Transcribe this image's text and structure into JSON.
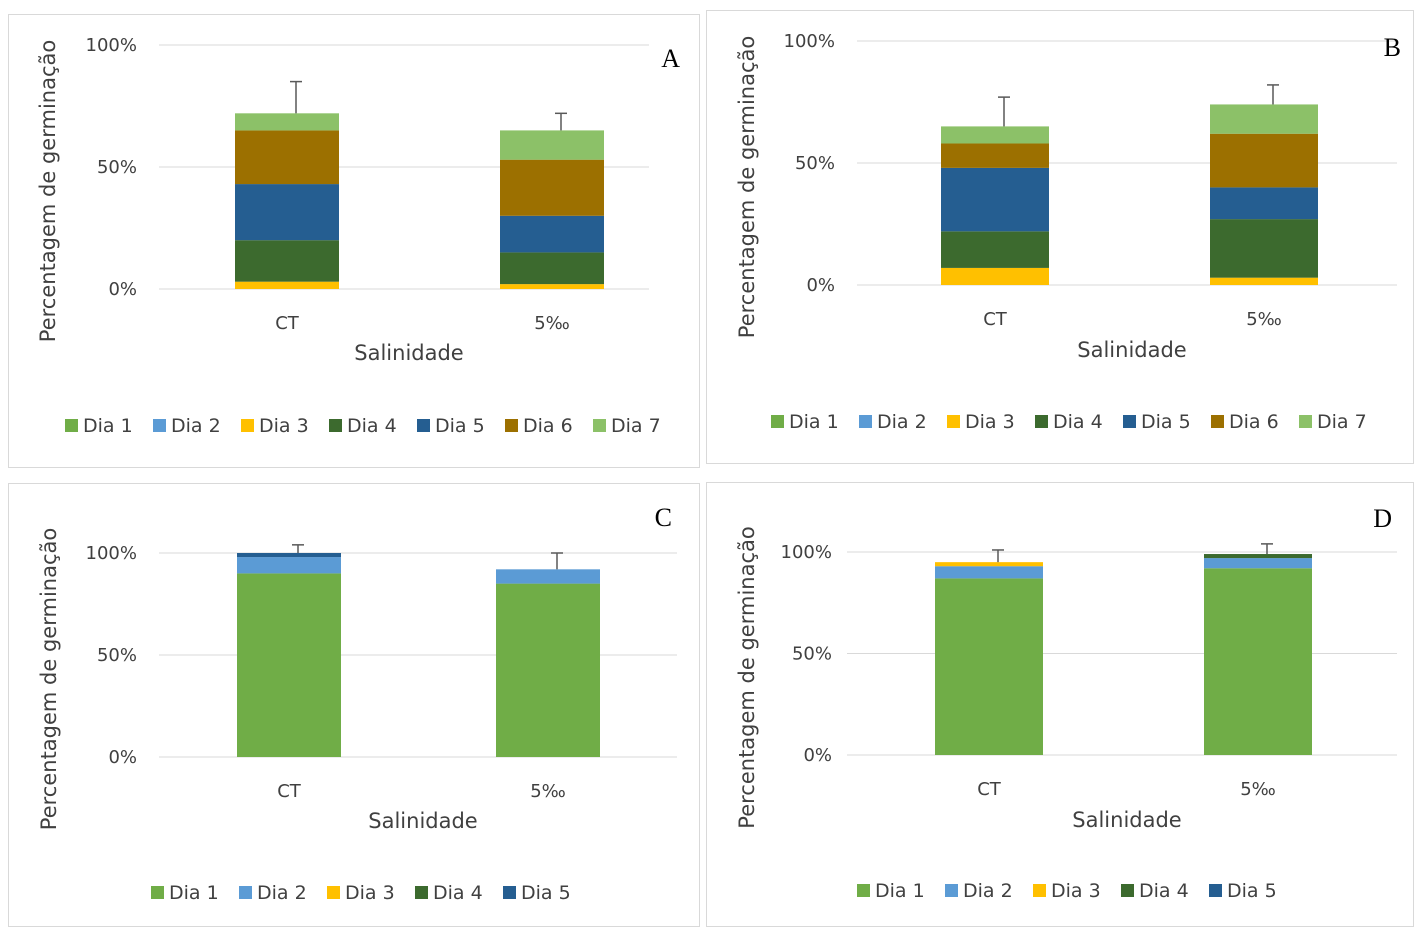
{
  "colors": {
    "Dia 1": "#70ad47",
    "Dia 2": "#5b9bd5",
    "Dia 3": "#ffc000",
    "Dia 4": "#3c6a2e",
    "Dia 5": "#255e91",
    "Dia 6": "#9c7000",
    "Dia 7": "#8cc168"
  },
  "chart_data": [
    {
      "panel_label": "A",
      "type": "bar",
      "stacked": true,
      "categories": [
        "CT",
        "5‰"
      ],
      "xlabel": "Salinidade",
      "ylabel": "Percentagem de germinação",
      "yticks": [
        "0%",
        "50%",
        "100%"
      ],
      "ylim": [
        0,
        100
      ],
      "grid": true,
      "legend_position": "bottom",
      "series": [
        {
          "name": "Dia 1",
          "values": [
            0,
            0
          ]
        },
        {
          "name": "Dia 2",
          "values": [
            0,
            0
          ]
        },
        {
          "name": "Dia 3",
          "values": [
            3,
            2
          ]
        },
        {
          "name": "Dia 4",
          "values": [
            17,
            13
          ]
        },
        {
          "name": "Dia 5",
          "values": [
            23,
            15
          ]
        },
        {
          "name": "Dia 6",
          "values": [
            22,
            23
          ]
        },
        {
          "name": "Dia 7",
          "values": [
            7,
            12
          ]
        }
      ],
      "error_top": [
        85,
        72
      ]
    },
    {
      "panel_label": "B",
      "type": "bar",
      "stacked": true,
      "categories": [
        "CT",
        "5‰"
      ],
      "xlabel": "Salinidade",
      "ylabel": "Percentagem de germinação",
      "yticks": [
        "0%",
        "50%",
        "100%"
      ],
      "ylim": [
        0,
        100
      ],
      "grid": true,
      "legend_position": "bottom",
      "series": [
        {
          "name": "Dia 1",
          "values": [
            0,
            0
          ]
        },
        {
          "name": "Dia 2",
          "values": [
            0,
            0
          ]
        },
        {
          "name": "Dia 3",
          "values": [
            7,
            3
          ]
        },
        {
          "name": "Dia 4",
          "values": [
            15,
            24
          ]
        },
        {
          "name": "Dia 5",
          "values": [
            26,
            13
          ]
        },
        {
          "name": "Dia 6",
          "values": [
            10,
            22
          ]
        },
        {
          "name": "Dia 7",
          "values": [
            7,
            12
          ]
        }
      ],
      "error_top": [
        77,
        82
      ]
    },
    {
      "panel_label": "C",
      "type": "bar",
      "stacked": true,
      "categories": [
        "CT",
        "5‰"
      ],
      "xlabel": "Salinidade",
      "ylabel": "Percentagem de germinação",
      "yticks": [
        "0%",
        "50%",
        "100%"
      ],
      "ylim": [
        0,
        100
      ],
      "grid": true,
      "legend_position": "bottom",
      "series": [
        {
          "name": "Dia 1",
          "values": [
            90,
            85
          ]
        },
        {
          "name": "Dia 2",
          "values": [
            8,
            7
          ]
        },
        {
          "name": "Dia 3",
          "values": [
            0,
            0
          ]
        },
        {
          "name": "Dia 4",
          "values": [
            0,
            0
          ]
        },
        {
          "name": "Dia 5",
          "values": [
            2,
            0
          ]
        }
      ],
      "error_top": [
        104,
        100
      ]
    },
    {
      "panel_label": "D",
      "type": "bar",
      "stacked": true,
      "categories": [
        "CT",
        "5‰"
      ],
      "xlabel": "Salinidade",
      "ylabel": "Percentagem de germinação",
      "yticks": [
        "0%",
        "50%",
        "100%"
      ],
      "ylim": [
        0,
        100
      ],
      "grid": true,
      "legend_position": "bottom",
      "series": [
        {
          "name": "Dia 1",
          "values": [
            87,
            92
          ]
        },
        {
          "name": "Dia 2",
          "values": [
            6,
            5
          ]
        },
        {
          "name": "Dia 3",
          "values": [
            2,
            0
          ]
        },
        {
          "name": "Dia 4",
          "values": [
            0,
            2
          ]
        },
        {
          "name": "Dia 5",
          "values": [
            0,
            0
          ]
        }
      ],
      "error_top": [
        101,
        104
      ]
    }
  ]
}
